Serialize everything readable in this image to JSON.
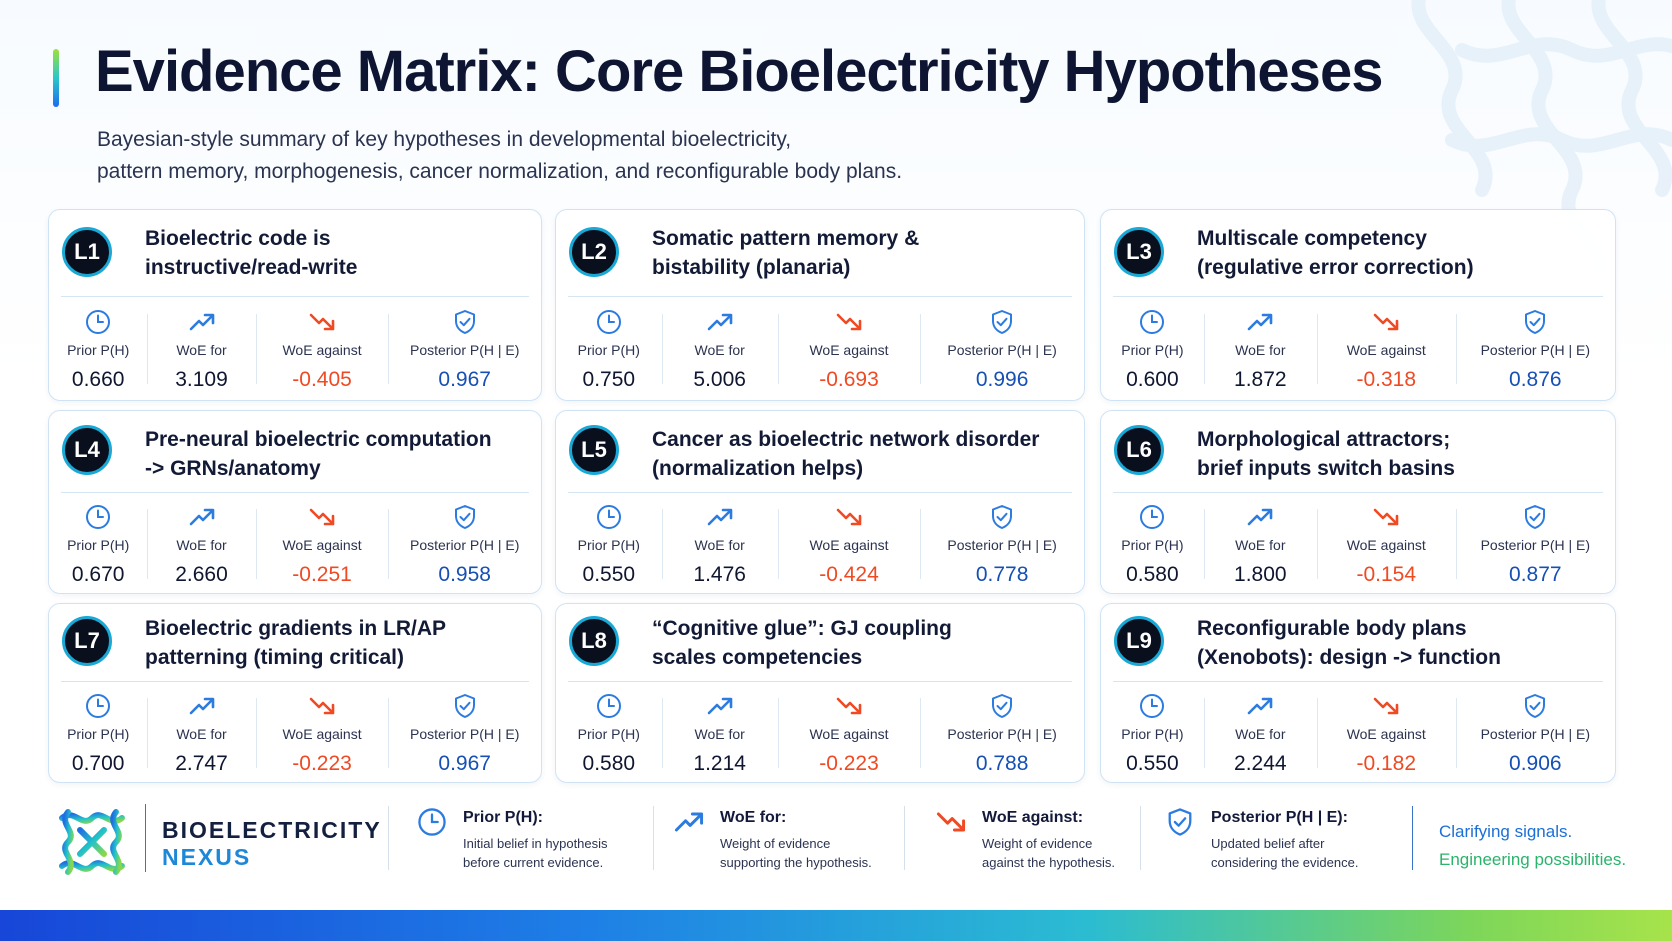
{
  "header": {
    "title": "Evidence Matrix: Core Bioelectricity Hypotheses",
    "subtitle_line1": "Bayesian-style summary of key hypotheses in developmental bioelectricity,",
    "subtitle_line2": "pattern memory, morphogenesis, cancer normalization, and reconfigurable body plans."
  },
  "metric_labels": {
    "prior": "Prior P(H)",
    "woe_for": "WoE for",
    "woe_against": "WoE against",
    "posterior": "Posterior P(H | E)"
  },
  "cards": [
    {
      "badge": "L1",
      "title_line1": "Bioelectric code is",
      "title_line2": "instructive/read-write",
      "prior": "0.660",
      "woe_for": "3.109",
      "woe_against": "-0.405",
      "posterior": "0.967"
    },
    {
      "badge": "L2",
      "title_line1": "Somatic pattern memory &",
      "title_line2": "bistability (planaria)",
      "prior": "0.750",
      "woe_for": "5.006",
      "woe_against": "-0.693",
      "posterior": "0.996"
    },
    {
      "badge": "L3",
      "title_line1": "Multiscale competency",
      "title_line2": "(regulative error correction)",
      "prior": "0.600",
      "woe_for": "1.872",
      "woe_against": "-0.318",
      "posterior": "0.876"
    },
    {
      "badge": "L4",
      "title_line1": "Pre-neural bioelectric computation",
      "title_line2": "-> GRNs/anatomy",
      "prior": "0.670",
      "woe_for": "2.660",
      "woe_against": "-0.251",
      "posterior": "0.958"
    },
    {
      "badge": "L5",
      "title_line1": "Cancer as bioelectric network disorder",
      "title_line2": "(normalization helps)",
      "prior": "0.550",
      "woe_for": "1.476",
      "woe_against": "-0.424",
      "posterior": "0.778"
    },
    {
      "badge": "L6",
      "title_line1": "Morphological attractors;",
      "title_line2": "brief inputs switch basins",
      "prior": "0.580",
      "woe_for": "1.800",
      "woe_against": "-0.154",
      "posterior": "0.877"
    },
    {
      "badge": "L7",
      "title_line1": "Bioelectric gradients in LR/AP",
      "title_line2": "patterning (timing critical)",
      "prior": "0.700",
      "woe_for": "2.747",
      "woe_against": "-0.223",
      "posterior": "0.967"
    },
    {
      "badge": "L8",
      "title_line1": "“Cognitive glue”: GJ coupling",
      "title_line2": "scales competencies",
      "prior": "0.580",
      "woe_for": "1.214",
      "woe_against": "-0.223",
      "posterior": "0.788"
    },
    {
      "badge": "L9",
      "title_line1": "Reconfigurable body plans",
      "title_line2": "(Xenobots): design -> function",
      "prior": "0.550",
      "woe_for": "2.244",
      "woe_against": "-0.182",
      "posterior": "0.906"
    }
  ],
  "legend": {
    "brand_line1": "BIOELECTRICITY",
    "brand_line2": "NEXUS",
    "items": [
      {
        "title": "Prior P(H):",
        "desc1": "Initial belief in hypothesis",
        "desc2": "before current evidence.",
        "icon": "clock-icon"
      },
      {
        "title": "WoE for:",
        "desc1": "Weight of evidence",
        "desc2": "supporting the hypothesis.",
        "icon": "trend-up-icon"
      },
      {
        "title": "WoE against:",
        "desc1": "Weight of evidence",
        "desc2": "against the hypothesis.",
        "icon": "trend-down-icon"
      },
      {
        "title": "Posterior P(H | E):",
        "desc1": "Updated belief after",
        "desc2": "considering the evidence.",
        "icon": "shield-check-icon"
      }
    ],
    "tagline1": "Clarifying signals.",
    "tagline2": "Engineering possibilities."
  },
  "colors": {
    "accent_blue": "#1e88d8",
    "against_orange": "#ef4a23",
    "posterior_blue": "#1650b5",
    "tagline_green": "#2ab36b"
  }
}
